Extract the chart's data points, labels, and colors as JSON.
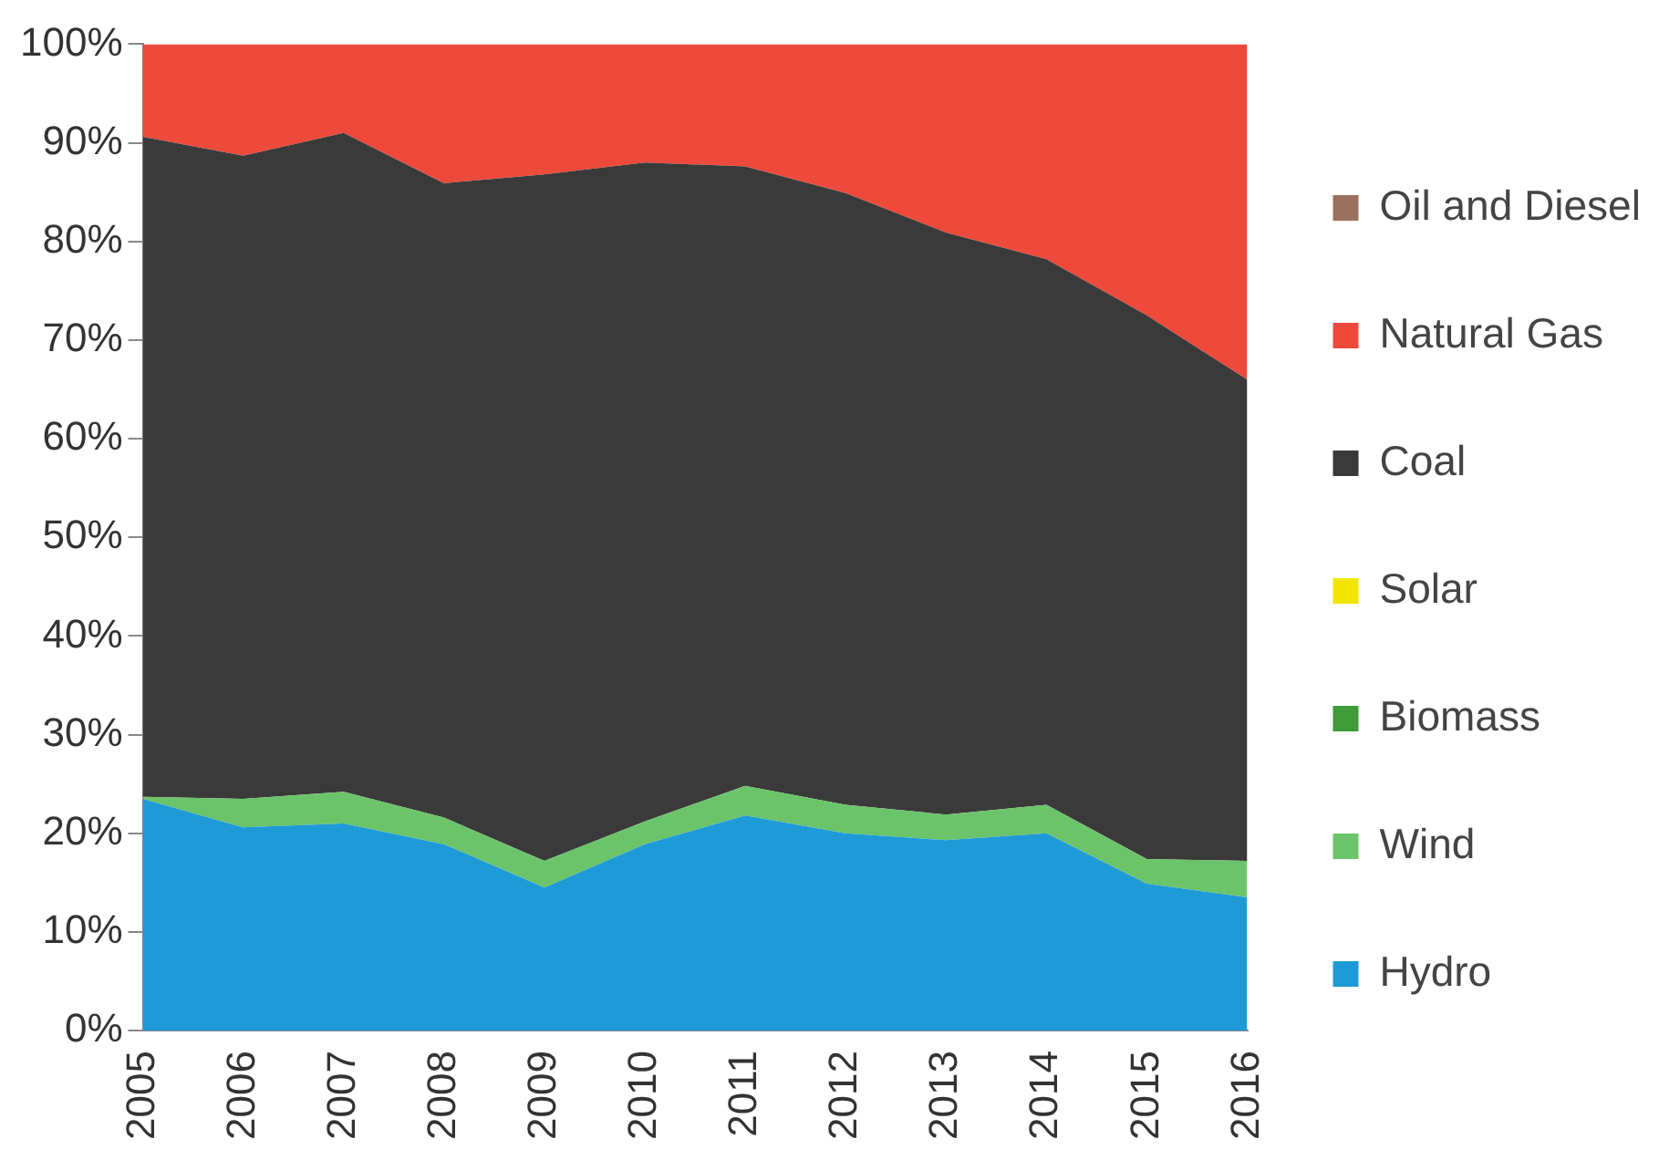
{
  "chart_data": {
    "type": "area",
    "stacked": true,
    "categories": [
      "2005",
      "2006",
      "2007",
      "2008",
      "2009",
      "2010",
      "2011",
      "2012",
      "2013",
      "2014",
      "2015",
      "2016"
    ],
    "series": [
      {
        "name": "Hydro",
        "color": "#1e9ad6",
        "values": [
          23.5,
          20.6,
          21.0,
          18.9,
          14.5,
          18.9,
          21.8,
          20.0,
          19.3,
          20.0,
          14.9,
          13.5
        ]
      },
      {
        "name": "Wind",
        "color": "#6cc46a",
        "values": [
          0.2,
          2.9,
          3.2,
          2.7,
          2.7,
          2.3,
          3.0,
          2.9,
          2.6,
          2.9,
          2.5,
          3.7
        ]
      },
      {
        "name": "Biomass",
        "color": "#3f9a3a",
        "values": [
          null,
          null,
          null,
          null,
          null,
          null,
          null,
          null,
          null,
          null,
          null,
          null
        ]
      },
      {
        "name": "Solar",
        "color": "#f2e600",
        "values": [
          null,
          null,
          null,
          null,
          null,
          null,
          null,
          null,
          null,
          null,
          null,
          null
        ]
      },
      {
        "name": "Coal",
        "color": "#3a3a3a",
        "values": [
          66.9,
          65.2,
          66.8,
          64.3,
          69.6,
          66.8,
          62.8,
          62.0,
          59.0,
          55.3,
          55.1,
          48.8
        ]
      },
      {
        "name": "Natural Gas",
        "color": "#ee4a3c",
        "values": [
          9.4,
          11.3,
          9.0,
          14.1,
          13.2,
          12.0,
          12.4,
          15.1,
          19.1,
          21.8,
          27.5,
          34.0
        ]
      },
      {
        "name": "Oil and Diesel",
        "color": "#9a7060",
        "values": [
          null,
          null,
          null,
          null,
          null,
          null,
          null,
          null,
          null,
          null,
          null,
          null
        ]
      }
    ],
    "ylim": [
      0,
      100
    ],
    "yticks": [
      {
        "value": 0,
        "label": "0%"
      },
      {
        "value": 10,
        "label": "10%"
      },
      {
        "value": 20,
        "label": "20%"
      },
      {
        "value": 30,
        "label": "30%"
      },
      {
        "value": 40,
        "label": "40%"
      },
      {
        "value": 50,
        "label": "50%"
      },
      {
        "value": 60,
        "label": "60%"
      },
      {
        "value": 70,
        "label": "70%"
      },
      {
        "value": 80,
        "label": "80%"
      },
      {
        "value": 90,
        "label": "90%"
      },
      {
        "value": 100,
        "label": "100%"
      }
    ],
    "grid": false,
    "legend": "right"
  }
}
